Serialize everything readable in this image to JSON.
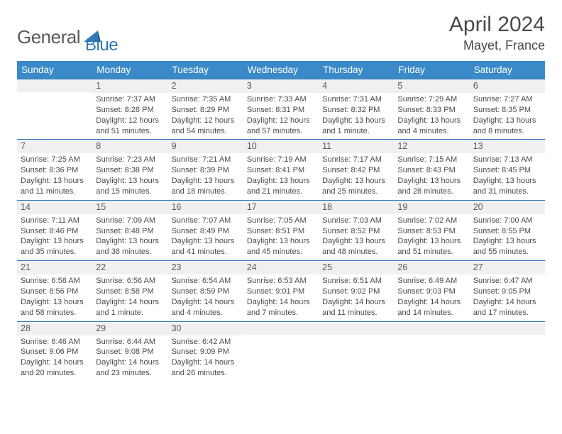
{
  "brand": {
    "part1": "General",
    "part2": "Blue"
  },
  "title": "April 2024",
  "location": "Mayet, France",
  "colors": {
    "header_bg": "#3a8ac8",
    "border": "#2f79b9",
    "daynum_bg": "#f0f0f0",
    "text": "#4a4a4a",
    "brand_blue": "#2f79b9"
  },
  "daynames": [
    "Sunday",
    "Monday",
    "Tuesday",
    "Wednesday",
    "Thursday",
    "Friday",
    "Saturday"
  ],
  "weeks": [
    [
      null,
      {
        "n": "1",
        "sr": "Sunrise: 7:37 AM",
        "ss": "Sunset: 8:28 PM",
        "dl": "Daylight: 12 hours and 51 minutes."
      },
      {
        "n": "2",
        "sr": "Sunrise: 7:35 AM",
        "ss": "Sunset: 8:29 PM",
        "dl": "Daylight: 12 hours and 54 minutes."
      },
      {
        "n": "3",
        "sr": "Sunrise: 7:33 AM",
        "ss": "Sunset: 8:31 PM",
        "dl": "Daylight: 12 hours and 57 minutes."
      },
      {
        "n": "4",
        "sr": "Sunrise: 7:31 AM",
        "ss": "Sunset: 8:32 PM",
        "dl": "Daylight: 13 hours and 1 minute."
      },
      {
        "n": "5",
        "sr": "Sunrise: 7:29 AM",
        "ss": "Sunset: 8:33 PM",
        "dl": "Daylight: 13 hours and 4 minutes."
      },
      {
        "n": "6",
        "sr": "Sunrise: 7:27 AM",
        "ss": "Sunset: 8:35 PM",
        "dl": "Daylight: 13 hours and 8 minutes."
      }
    ],
    [
      {
        "n": "7",
        "sr": "Sunrise: 7:25 AM",
        "ss": "Sunset: 8:36 PM",
        "dl": "Daylight: 13 hours and 11 minutes."
      },
      {
        "n": "8",
        "sr": "Sunrise: 7:23 AM",
        "ss": "Sunset: 8:38 PM",
        "dl": "Daylight: 13 hours and 15 minutes."
      },
      {
        "n": "9",
        "sr": "Sunrise: 7:21 AM",
        "ss": "Sunset: 8:39 PM",
        "dl": "Daylight: 13 hours and 18 minutes."
      },
      {
        "n": "10",
        "sr": "Sunrise: 7:19 AM",
        "ss": "Sunset: 8:41 PM",
        "dl": "Daylight: 13 hours and 21 minutes."
      },
      {
        "n": "11",
        "sr": "Sunrise: 7:17 AM",
        "ss": "Sunset: 8:42 PM",
        "dl": "Daylight: 13 hours and 25 minutes."
      },
      {
        "n": "12",
        "sr": "Sunrise: 7:15 AM",
        "ss": "Sunset: 8:43 PM",
        "dl": "Daylight: 13 hours and 28 minutes."
      },
      {
        "n": "13",
        "sr": "Sunrise: 7:13 AM",
        "ss": "Sunset: 8:45 PM",
        "dl": "Daylight: 13 hours and 31 minutes."
      }
    ],
    [
      {
        "n": "14",
        "sr": "Sunrise: 7:11 AM",
        "ss": "Sunset: 8:46 PM",
        "dl": "Daylight: 13 hours and 35 minutes."
      },
      {
        "n": "15",
        "sr": "Sunrise: 7:09 AM",
        "ss": "Sunset: 8:48 PM",
        "dl": "Daylight: 13 hours and 38 minutes."
      },
      {
        "n": "16",
        "sr": "Sunrise: 7:07 AM",
        "ss": "Sunset: 8:49 PM",
        "dl": "Daylight: 13 hours and 41 minutes."
      },
      {
        "n": "17",
        "sr": "Sunrise: 7:05 AM",
        "ss": "Sunset: 8:51 PM",
        "dl": "Daylight: 13 hours and 45 minutes."
      },
      {
        "n": "18",
        "sr": "Sunrise: 7:03 AM",
        "ss": "Sunset: 8:52 PM",
        "dl": "Daylight: 13 hours and 48 minutes."
      },
      {
        "n": "19",
        "sr": "Sunrise: 7:02 AM",
        "ss": "Sunset: 8:53 PM",
        "dl": "Daylight: 13 hours and 51 minutes."
      },
      {
        "n": "20",
        "sr": "Sunrise: 7:00 AM",
        "ss": "Sunset: 8:55 PM",
        "dl": "Daylight: 13 hours and 55 minutes."
      }
    ],
    [
      {
        "n": "21",
        "sr": "Sunrise: 6:58 AM",
        "ss": "Sunset: 8:56 PM",
        "dl": "Daylight: 13 hours and 58 minutes."
      },
      {
        "n": "22",
        "sr": "Sunrise: 6:56 AM",
        "ss": "Sunset: 8:58 PM",
        "dl": "Daylight: 14 hours and 1 minute."
      },
      {
        "n": "23",
        "sr": "Sunrise: 6:54 AM",
        "ss": "Sunset: 8:59 PM",
        "dl": "Daylight: 14 hours and 4 minutes."
      },
      {
        "n": "24",
        "sr": "Sunrise: 6:53 AM",
        "ss": "Sunset: 9:01 PM",
        "dl": "Daylight: 14 hours and 7 minutes."
      },
      {
        "n": "25",
        "sr": "Sunrise: 6:51 AM",
        "ss": "Sunset: 9:02 PM",
        "dl": "Daylight: 14 hours and 11 minutes."
      },
      {
        "n": "26",
        "sr": "Sunrise: 6:49 AM",
        "ss": "Sunset: 9:03 PM",
        "dl": "Daylight: 14 hours and 14 minutes."
      },
      {
        "n": "27",
        "sr": "Sunrise: 6:47 AM",
        "ss": "Sunset: 9:05 PM",
        "dl": "Daylight: 14 hours and 17 minutes."
      }
    ],
    [
      {
        "n": "28",
        "sr": "Sunrise: 6:46 AM",
        "ss": "Sunset: 9:06 PM",
        "dl": "Daylight: 14 hours and 20 minutes."
      },
      {
        "n": "29",
        "sr": "Sunrise: 6:44 AM",
        "ss": "Sunset: 9:08 PM",
        "dl": "Daylight: 14 hours and 23 minutes."
      },
      {
        "n": "30",
        "sr": "Sunrise: 6:42 AM",
        "ss": "Sunset: 9:09 PM",
        "dl": "Daylight: 14 hours and 26 minutes."
      },
      null,
      null,
      null,
      null
    ]
  ]
}
